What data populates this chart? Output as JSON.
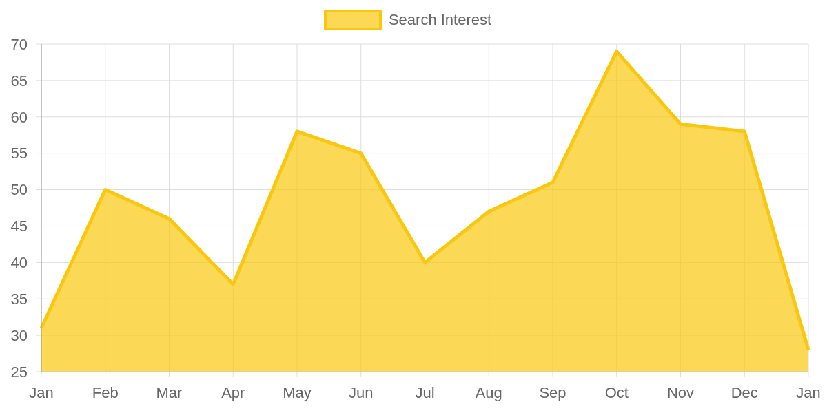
{
  "chart_data": {
    "type": "area",
    "categories": [
      "Jan",
      "Feb",
      "Mar",
      "Apr",
      "May",
      "Jun",
      "Jul",
      "Aug",
      "Sep",
      "Oct",
      "Nov",
      "Dec",
      "Jan"
    ],
    "series": [
      {
        "name": "Search Interest",
        "color": "#f9c80e",
        "values": [
          31,
          50,
          46,
          37,
          58,
          55,
          40,
          47,
          51,
          69,
          59,
          58,
          28
        ]
      }
    ],
    "ylim": [
      25,
      70
    ],
    "yticks": [
      25,
      30,
      35,
      40,
      45,
      50,
      55,
      60,
      65,
      70
    ],
    "grid": true,
    "legend": "top",
    "marker": "none",
    "line_style": "solid"
  }
}
